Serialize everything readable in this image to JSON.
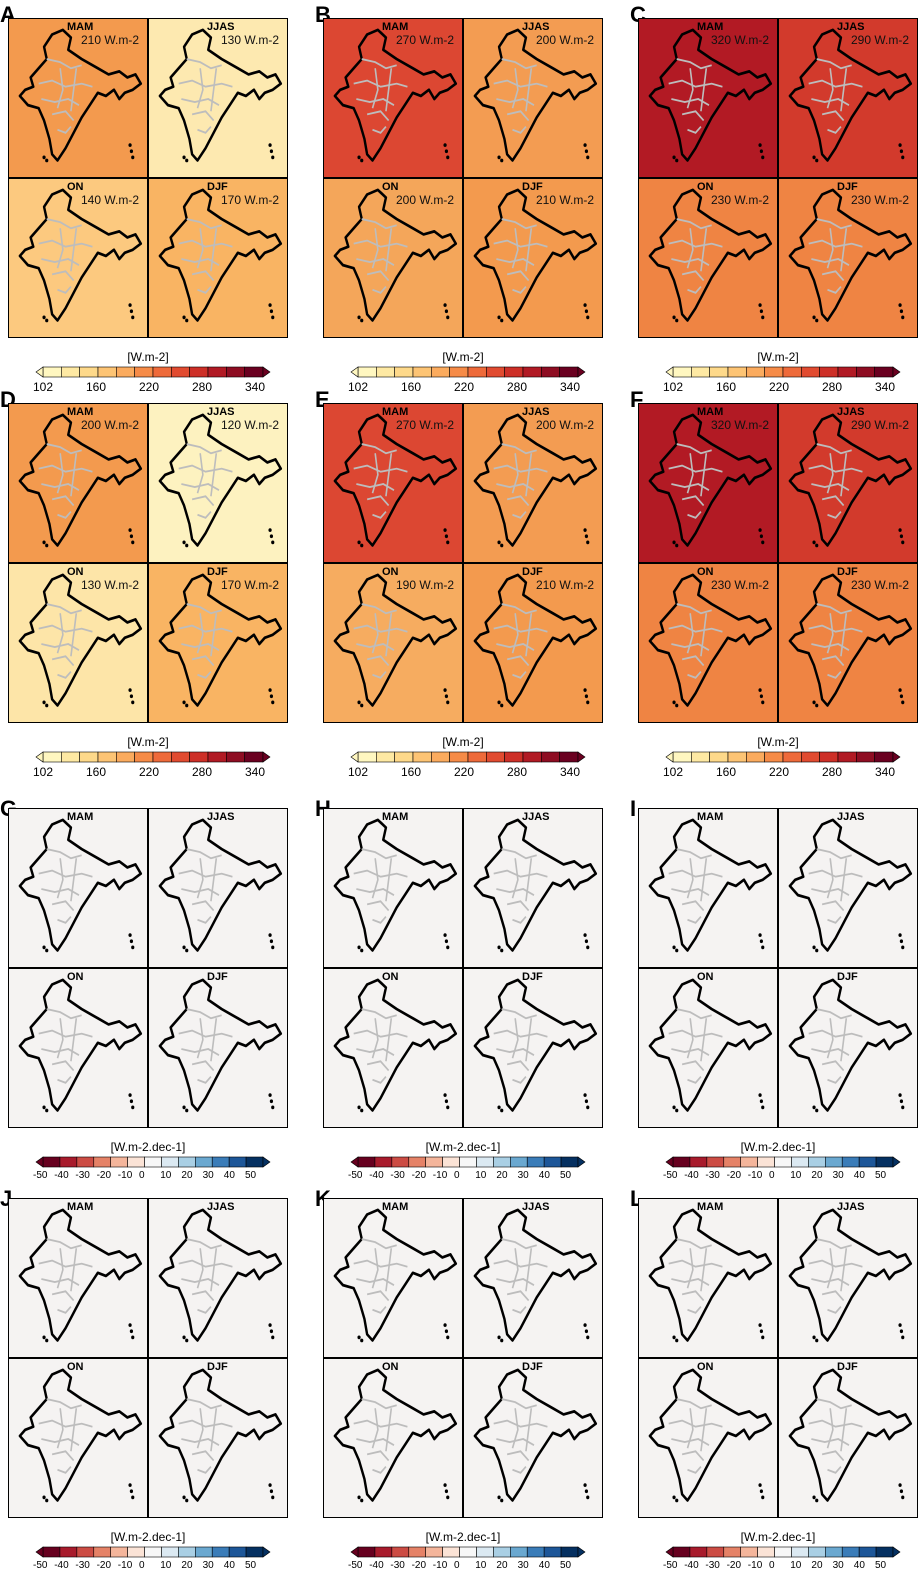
{
  "chart_data": {
    "type": "heatmap",
    "description_units_top": "W.m-2",
    "panels": [
      {
        "letter": "A",
        "group": "climatology",
        "seasons": [
          "MAM",
          "JJAS",
          "ON",
          "DJF"
        ],
        "values": [
          "210 W.m-2",
          "130 W.m-2",
          "140 W.m-2",
          "170 W.m-2"
        ],
        "fills": [
          "#f39a4e",
          "#fde9b0",
          "#fcc97f",
          "#f9b463"
        ]
      },
      {
        "letter": "B",
        "group": "climatology",
        "seasons": [
          "MAM",
          "JJAS",
          "ON",
          "DJF"
        ],
        "values": [
          "270 W.m-2",
          "200 W.m-2",
          "200 W.m-2",
          "210 W.m-2"
        ],
        "fills": [
          "#dc4732",
          "#f39c52",
          "#f4a65a",
          "#f39a4e"
        ]
      },
      {
        "letter": "C",
        "group": "climatology",
        "seasons": [
          "MAM",
          "JJAS",
          "ON",
          "DJF"
        ],
        "values": [
          "320 W.m-2",
          "290 W.m-2",
          "230 W.m-2",
          "230 W.m-2"
        ],
        "fills": [
          "#b21a24",
          "#d23a2c",
          "#ef8443",
          "#ef8443"
        ]
      },
      {
        "letter": "D",
        "group": "climatology",
        "seasons": [
          "MAM",
          "JJAS",
          "ON",
          "DJF"
        ],
        "values": [
          "200 W.m-2",
          "120 W.m-2",
          "130 W.m-2",
          "170 W.m-2"
        ],
        "fills": [
          "#f39a4e",
          "#fdf2c0",
          "#fde5a8",
          "#f9b463"
        ]
      },
      {
        "letter": "E",
        "group": "climatology",
        "seasons": [
          "MAM",
          "JJAS",
          "ON",
          "DJF"
        ],
        "values": [
          "270 W.m-2",
          "200 W.m-2",
          "190 W.m-2",
          "210 W.m-2"
        ],
        "fills": [
          "#dc4732",
          "#f39c52",
          "#f6ac60",
          "#f39a4e"
        ]
      },
      {
        "letter": "F",
        "group": "climatology",
        "seasons": [
          "MAM",
          "JJAS",
          "ON",
          "DJF"
        ],
        "values": [
          "320 W.m-2",
          "290 W.m-2",
          "230 W.m-2",
          "230 W.m-2"
        ],
        "fills": [
          "#b21a24",
          "#d23a2c",
          "#ef8443",
          "#ef8443"
        ]
      },
      {
        "letter": "G",
        "group": "trend",
        "seasons": [
          "MAM",
          "JJAS",
          "ON",
          "DJF"
        ],
        "values": [
          "",
          "",
          "",
          ""
        ],
        "fills": [
          "#f5f3f2",
          "#f5f3f2",
          "#f5f3f2",
          "#f5f3f2"
        ]
      },
      {
        "letter": "H",
        "group": "trend",
        "seasons": [
          "MAM",
          "JJAS",
          "ON",
          "DJF"
        ],
        "values": [
          "",
          "",
          "",
          ""
        ],
        "fills": [
          "#f5f3f2",
          "#f5f3f2",
          "#f5f3f2",
          "#f5f3f2"
        ]
      },
      {
        "letter": "I",
        "group": "trend",
        "seasons": [
          "MAM",
          "JJAS",
          "ON",
          "DJF"
        ],
        "values": [
          "",
          "",
          "",
          ""
        ],
        "fills": [
          "#f5f3f2",
          "#f5f3f2",
          "#f5f3f2",
          "#f5f3f2"
        ]
      },
      {
        "letter": "J",
        "group": "trend",
        "seasons": [
          "MAM",
          "JJAS",
          "ON",
          "DJF"
        ],
        "values": [
          "",
          "",
          "",
          ""
        ],
        "fills": [
          "#f5f3f2",
          "#f5f3f2",
          "#f5f3f2",
          "#f5f3f2"
        ]
      },
      {
        "letter": "K",
        "group": "trend",
        "seasons": [
          "MAM",
          "JJAS",
          "ON",
          "DJF"
        ],
        "values": [
          "",
          "",
          "",
          ""
        ],
        "fills": [
          "#f5f3f2",
          "#f5f3f2",
          "#f5f3f2",
          "#f5f3f2"
        ]
      },
      {
        "letter": "L",
        "group": "trend",
        "seasons": [
          "MAM",
          "JJAS",
          "ON",
          "DJF"
        ],
        "values": [
          "",
          "",
          "",
          ""
        ],
        "fills": [
          "#f5f3f2",
          "#f5f3f2",
          "#f5f3f2",
          "#f5f3f2"
        ]
      }
    ],
    "colorbars": {
      "climatology": {
        "label": "[W.m-2]",
        "ticks": [
          "102",
          "160",
          "220",
          "280",
          "340"
        ],
        "colors": [
          "#fff7c0",
          "#fee9a3",
          "#fed98a",
          "#fdc474",
          "#fbab5e",
          "#f68b47",
          "#ee6a3a",
          "#e14b30",
          "#cd2f27",
          "#b11a24",
          "#8e0d22",
          "#6a0020"
        ]
      },
      "trend": {
        "label": "[W.m-2.dec-1]",
        "ticks": [
          "-50",
          "-40",
          "-30",
          "-20",
          "-10",
          "0",
          "10",
          "20",
          "30",
          "40",
          "50"
        ],
        "colors": [
          "#67001f",
          "#a81b2c",
          "#cc4c44",
          "#e58267",
          "#f4b59b",
          "#fbe3d6",
          "#f7f7f7",
          "#dbe9f2",
          "#a9cfe4",
          "#6aa8d0",
          "#3a7cb8",
          "#1d5698",
          "#053061"
        ]
      }
    }
  }
}
